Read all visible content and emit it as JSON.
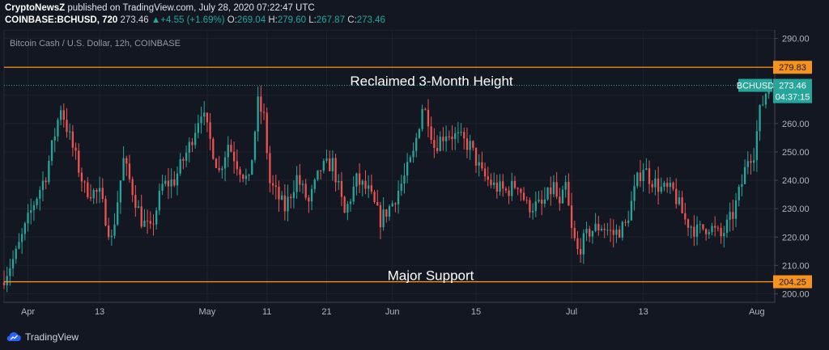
{
  "header": {
    "publisher": "CryptoNewsZ",
    "published_text": "published on TradingView.com, July 28, 2020 07:22:47 UTC",
    "symbol_line": "COINBASE:BCHUSD, 720",
    "last": "273.46",
    "change": "+4.55 (+1.69%)",
    "o_label": "O:",
    "o_value": "269.04",
    "h_label": "H:",
    "h_value": "279.60",
    "l_label": "L:",
    "l_value": "267.87",
    "c_label": "C:",
    "c_value": "273.46"
  },
  "footer": {
    "brand": "TradingView"
  },
  "colors": {
    "background": "#131722",
    "up": "#26a69a",
    "down": "#ef5350",
    "level": "#f7931a",
    "grid": "#1e222d"
  },
  "chart_data": {
    "type": "candlestick",
    "title": "Bitcoin Cash / U.S. Dollar, 12h, COINBASE",
    "ylim": [
      197,
      293
    ],
    "y_ticks": [
      "290.00",
      "280.00",
      "270.00",
      "260.00",
      "250.00",
      "240.00",
      "230.00",
      "220.00",
      "210.00",
      "200.00"
    ],
    "x_ticks": [
      {
        "label": "Apr",
        "date": "2020-04-01"
      },
      {
        "label": "13",
        "date": "2020-04-13"
      },
      {
        "label": "May",
        "date": "2020-05-01"
      },
      {
        "label": "11",
        "date": "2020-05-11"
      },
      {
        "label": "21",
        "date": "2020-05-21"
      },
      {
        "label": "Jun",
        "date": "2020-06-01"
      },
      {
        "label": "15",
        "date": "2020-06-15"
      },
      {
        "label": "Jul",
        "date": "2020-07-01"
      },
      {
        "label": "13",
        "date": "2020-07-13"
      },
      {
        "label": "Aug",
        "date": "2020-08-01"
      }
    ],
    "x_range": [
      "2020-03-28",
      "2020-08-04"
    ],
    "start_time": "2020-03-28",
    "interval_hours": 12,
    "close_path": [
      [
        0,
        206
      ],
      [
        4,
        214
      ],
      [
        10,
        232
      ],
      [
        14,
        242
      ],
      [
        19,
        266
      ],
      [
        22,
        255
      ],
      [
        27,
        237
      ],
      [
        32,
        235
      ],
      [
        36,
        219
      ],
      [
        40,
        247
      ],
      [
        46,
        226
      ],
      [
        49,
        222
      ],
      [
        53,
        238
      ],
      [
        57,
        240
      ],
      [
        62,
        252
      ],
      [
        66,
        265
      ],
      [
        69,
        254
      ],
      [
        72,
        243
      ],
      [
        75,
        253
      ],
      [
        78,
        246
      ],
      [
        82,
        239
      ],
      [
        85,
        267
      ],
      [
        87,
        262
      ],
      [
        89,
        239
      ],
      [
        94,
        230
      ],
      [
        98,
        241
      ],
      [
        102,
        232
      ],
      [
        106,
        244
      ],
      [
        110,
        246
      ],
      [
        114,
        228
      ],
      [
        118,
        240
      ],
      [
        122,
        236
      ],
      [
        126,
        226
      ],
      [
        130,
        232
      ],
      [
        134,
        241
      ],
      [
        137,
        249
      ],
      [
        140,
        266
      ],
      [
        142,
        262
      ],
      [
        144,
        252
      ],
      [
        148,
        257
      ],
      [
        152,
        255
      ],
      [
        156,
        252
      ],
      [
        160,
        242
      ],
      [
        164,
        238
      ],
      [
        168,
        236
      ],
      [
        172,
        239
      ],
      [
        175,
        231
      ],
      [
        180,
        231
      ],
      [
        184,
        238
      ],
      [
        186,
        230
      ],
      [
        188,
        238
      ],
      [
        190,
        222
      ],
      [
        192,
        215
      ],
      [
        196,
        222
      ],
      [
        200,
        224
      ],
      [
        204,
        221
      ],
      [
        208,
        224
      ],
      [
        212,
        240
      ],
      [
        214,
        245
      ],
      [
        216,
        241
      ],
      [
        220,
        237
      ],
      [
        224,
        236
      ],
      [
        228,
        226
      ],
      [
        232,
        222
      ],
      [
        236,
        224
      ],
      [
        240,
        220
      ],
      [
        244,
        228
      ],
      [
        247,
        239
      ],
      [
        249,
        248
      ],
      [
        251,
        250
      ],
      [
        253,
        264
      ],
      [
        255,
        271
      ],
      [
        256,
        273.46
      ]
    ],
    "levels": [
      {
        "value": 279.83,
        "label": "279.83",
        "annotation": "Reclaimed 3-Month Height"
      },
      {
        "value": 204.25,
        "label": "204.25",
        "annotation": "Major Support"
      }
    ],
    "last_price": {
      "symbol": "BCHUSD",
      "value": 273.46,
      "label": "273.46",
      "countdown": "04:37:15"
    }
  }
}
